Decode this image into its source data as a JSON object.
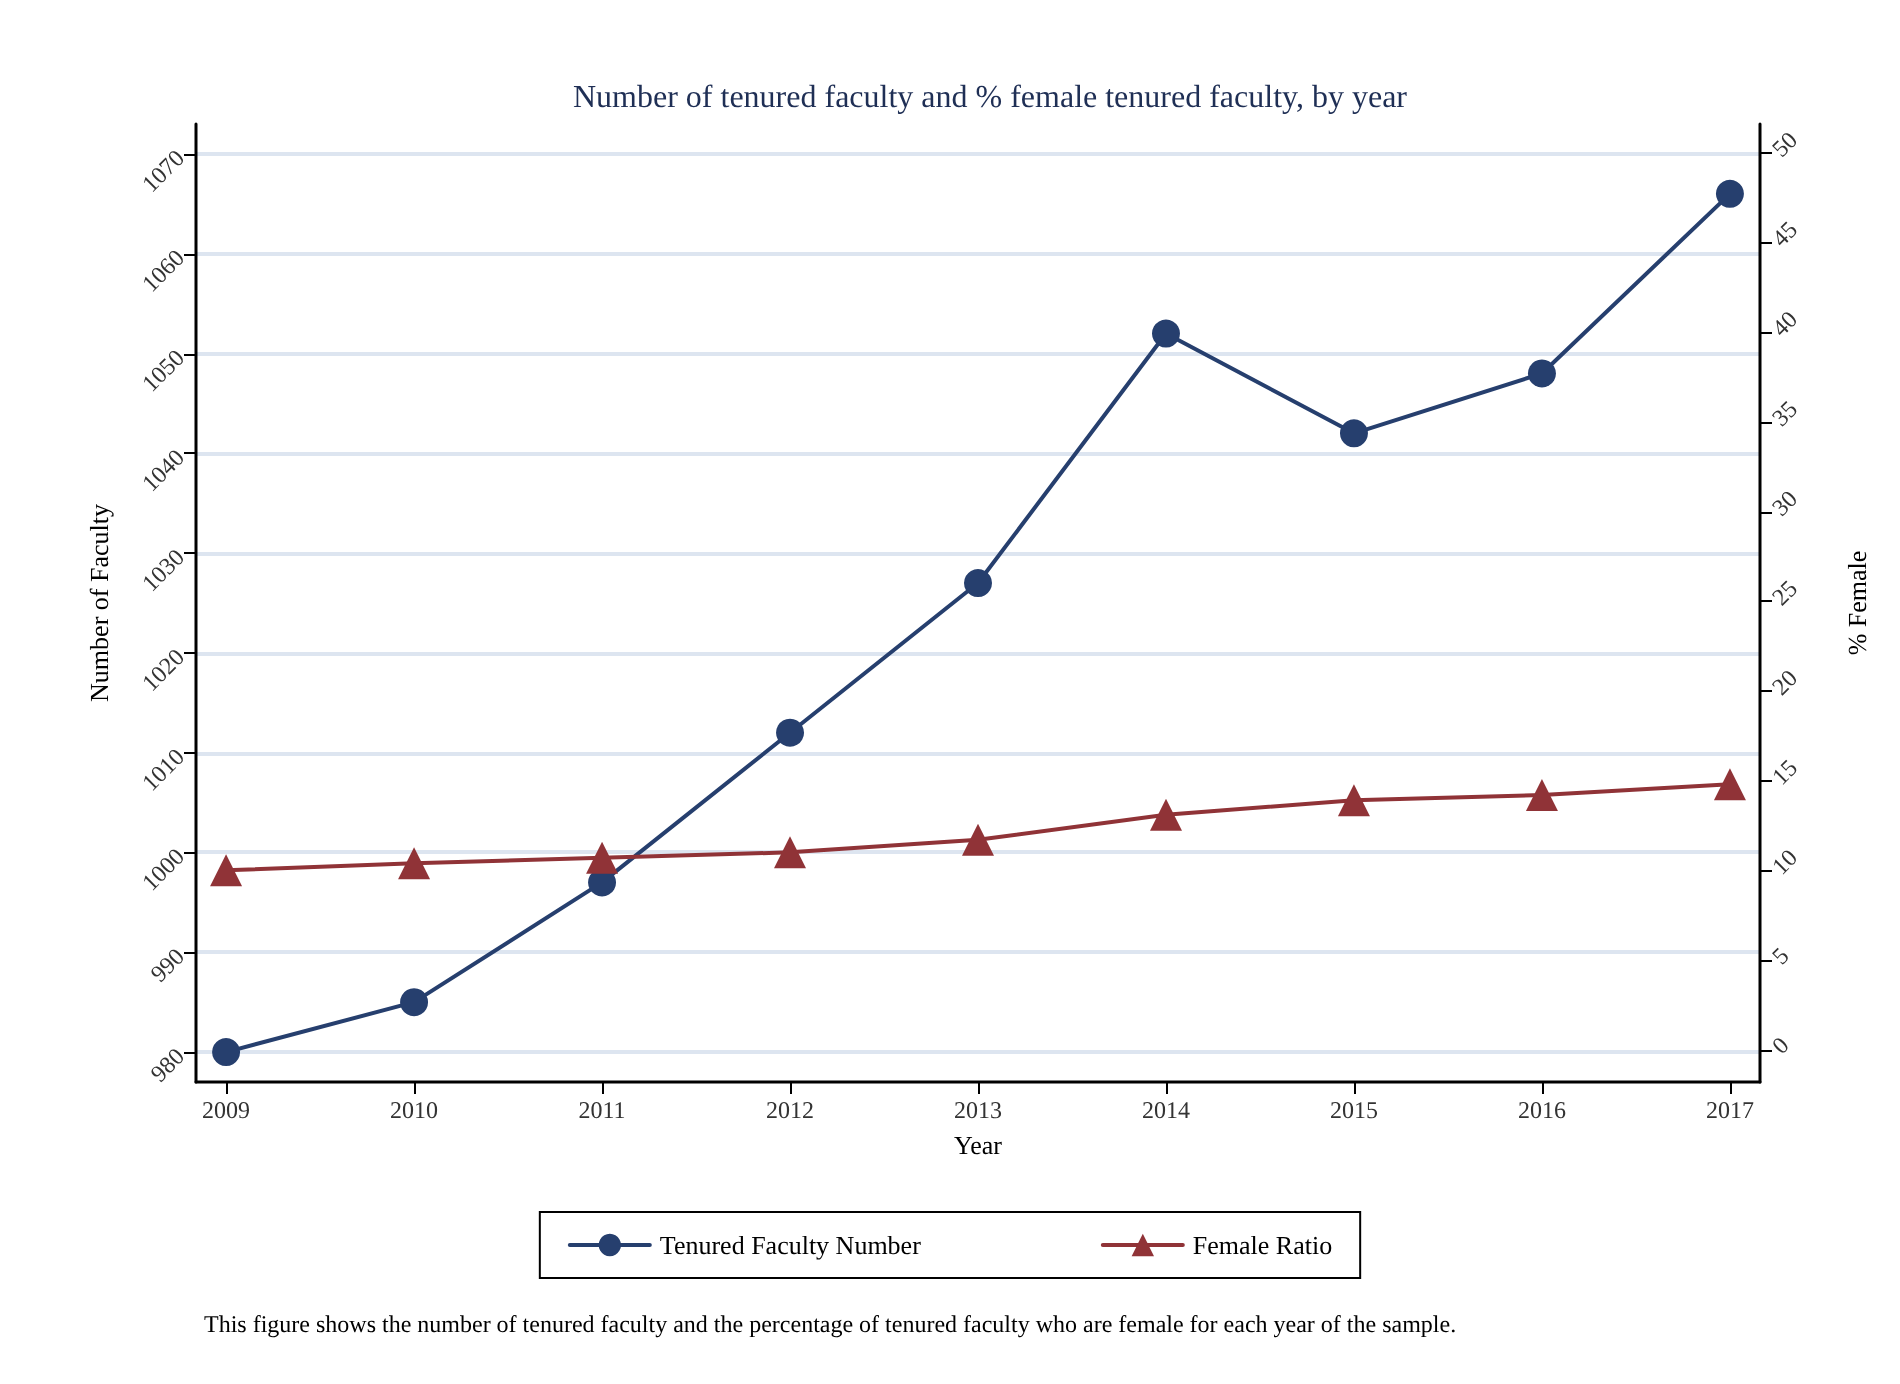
{
  "chart_data": {
    "type": "line",
    "title": "Number of tenured faculty and % female tenured faculty, by year",
    "xlabel": "Year",
    "ylabel": "Number of Faculty",
    "y2label": "% Female",
    "x": [
      2009,
      2010,
      2011,
      2012,
      2013,
      2014,
      2015,
      2016,
      2017
    ],
    "xlim": [
      2008.84,
      2017.16
    ],
    "xticks": [
      2009,
      2010,
      2011,
      2012,
      2013,
      2014,
      2015,
      2016,
      2017
    ],
    "ylim": [
      977,
      1073
    ],
    "yticks": [
      980,
      990,
      1000,
      1010,
      1020,
      1030,
      1040,
      1050,
      1060,
      1070
    ],
    "y2lim": [
      -1.8,
      51.6
    ],
    "y2ticks": [
      0,
      5,
      10,
      15,
      20,
      25,
      30,
      35,
      40,
      45,
      50
    ],
    "series": [
      {
        "name": "Tenured Faculty Number",
        "color": "#263f6e",
        "marker": "circle",
        "values": [
          980,
          985,
          997,
          1012,
          1027,
          1052,
          1042,
          1048,
          1066
        ]
      },
      {
        "name": "Female Ratio",
        "color": "#903337",
        "marker": "triangle",
        "axis": "y2",
        "values": [
          10.0,
          10.4,
          10.7,
          11.0,
          11.7,
          13.1,
          13.9,
          14.2,
          14.8
        ]
      }
    ],
    "grid": "y",
    "legend": "bottom",
    "annotations": [
      "This figure shows the number of tenured faculty and the percentage of tenured faculty who are female for each year of the sample."
    ]
  }
}
